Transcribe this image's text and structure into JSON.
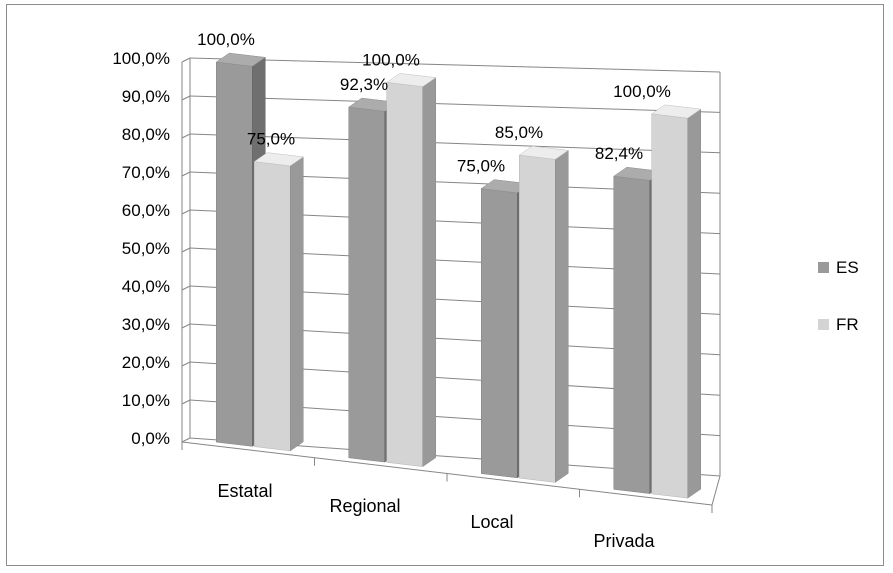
{
  "chart_data": {
    "type": "bar",
    "categories": [
      "Estatal",
      "Regional",
      "Local",
      "Privada"
    ],
    "series": [
      {
        "name": "ES",
        "values": [
          100.0,
          92.3,
          75.0,
          82.4
        ],
        "labels": [
          "100,0%",
          "92,3%",
          "75,0%",
          "82,4%"
        ],
        "color": "#9a9a9a"
      },
      {
        "name": "FR",
        "values": [
          75.0,
          100.0,
          85.0,
          100.0
        ],
        "labels": [
          "75,0%",
          "100,0%",
          "85,0%",
          "100,0%"
        ],
        "color": "#d4d4d4"
      }
    ],
    "ylim": [
      0,
      100
    ],
    "yticks": [
      "0,0%",
      "10,0%",
      "20,0%",
      "30,0%",
      "40,0%",
      "50,0%",
      "60,0%",
      "70,0%",
      "80,0%",
      "90,0%",
      "100,0%"
    ],
    "grid": true,
    "legend": "right",
    "title": "",
    "xlabel": "",
    "ylabel": ""
  }
}
